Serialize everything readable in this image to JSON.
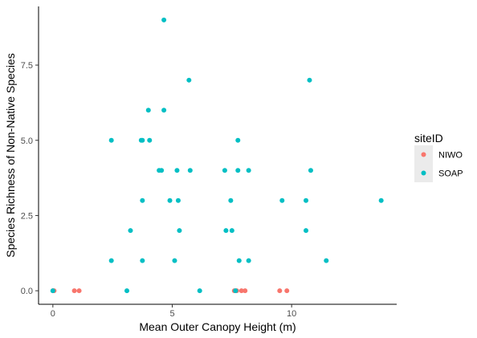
{
  "chart_data": {
    "type": "scatter",
    "title": "",
    "xlabel": "Mean Outer Canopy Height (m)",
    "ylabel": "Species Richness of Non-Native Species",
    "xlim": [
      -0.6,
      14.4
    ],
    "ylim": [
      -0.45,
      9.45
    ],
    "x_ticks": [
      0,
      5,
      10
    ],
    "x_tick_labels": [
      "0",
      "5",
      "10"
    ],
    "y_ticks": [
      0,
      2.5,
      5,
      7.5
    ],
    "y_tick_labels": [
      "0.0",
      "2.5",
      "5.0",
      "7.5"
    ],
    "grid": false,
    "legend": {
      "title": "siteID",
      "placement": "right",
      "entries": [
        "NIWO",
        "SOAP"
      ]
    },
    "series": [
      {
        "name": "NIWO",
        "color": "#f8766d",
        "points": [
          [
            0.0,
            0
          ],
          [
            0.05,
            0
          ],
          [
            0.9,
            0
          ],
          [
            1.1,
            0
          ],
          [
            7.6,
            0
          ],
          [
            7.7,
            0
          ],
          [
            7.9,
            0
          ],
          [
            8.05,
            0
          ],
          [
            9.5,
            0
          ],
          [
            9.8,
            0
          ]
        ]
      },
      {
        "name": "SOAP",
        "color": "#00bfc4",
        "points": [
          [
            4.65,
            9
          ],
          [
            5.7,
            7
          ],
          [
            10.75,
            7
          ],
          [
            4.0,
            6
          ],
          [
            4.65,
            6
          ],
          [
            2.45,
            5
          ],
          [
            3.7,
            5
          ],
          [
            3.75,
            5
          ],
          [
            4.05,
            5
          ],
          [
            7.75,
            5
          ],
          [
            4.45,
            4
          ],
          [
            4.55,
            4
          ],
          [
            5.2,
            4
          ],
          [
            5.75,
            4
          ],
          [
            7.2,
            4
          ],
          [
            7.75,
            4
          ],
          [
            8.2,
            4
          ],
          [
            10.8,
            4
          ],
          [
            3.75,
            3
          ],
          [
            4.9,
            3
          ],
          [
            5.25,
            3
          ],
          [
            7.45,
            3
          ],
          [
            9.6,
            3
          ],
          [
            10.6,
            3
          ],
          [
            13.75,
            3
          ],
          [
            3.25,
            2
          ],
          [
            5.3,
            2
          ],
          [
            7.25,
            2
          ],
          [
            7.5,
            2
          ],
          [
            10.6,
            2
          ],
          [
            2.45,
            1
          ],
          [
            3.75,
            1
          ],
          [
            5.1,
            1
          ],
          [
            7.8,
            1
          ],
          [
            8.2,
            1
          ],
          [
            11.45,
            1
          ],
          [
            0.0,
            0
          ],
          [
            3.1,
            0
          ],
          [
            6.15,
            0
          ],
          [
            7.65,
            0
          ]
        ]
      }
    ]
  }
}
